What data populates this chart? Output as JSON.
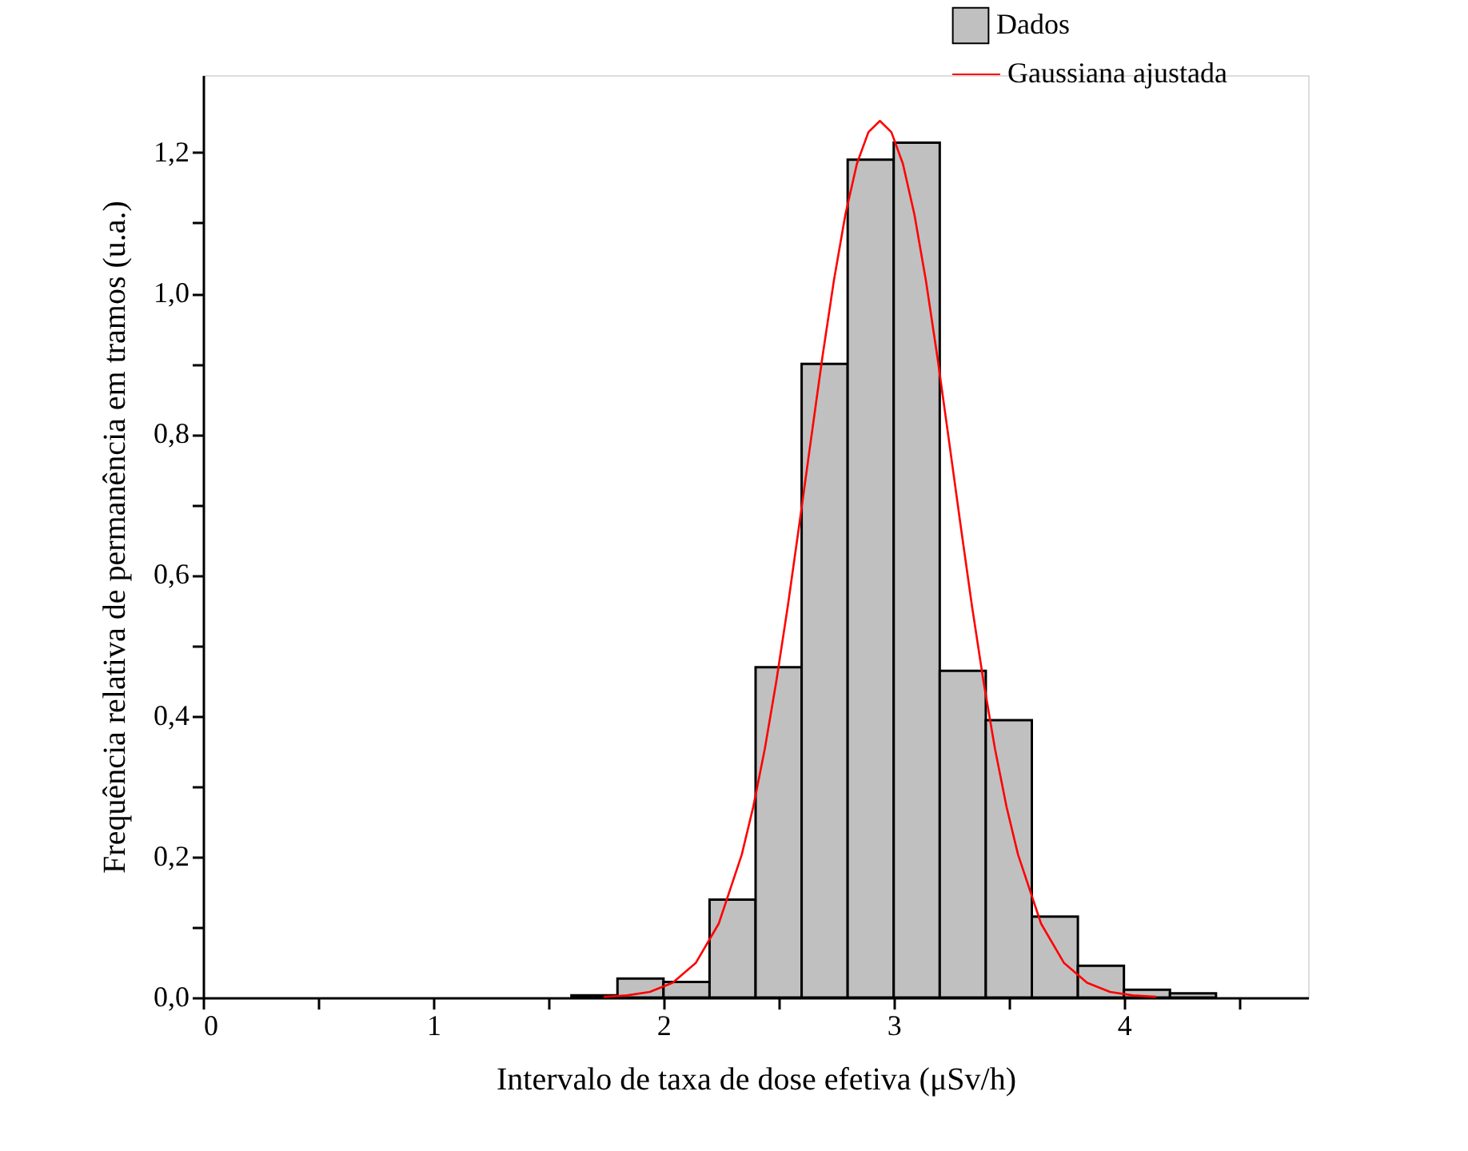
{
  "chart_data": {
    "type": "histogram",
    "xlabel": "Intervalo de taxa de dose efetiva (μSv/h)",
    "ylabel": "Frequência relativa de permanência em tramos (u.a.)",
    "bins": [
      1.6,
      1.8,
      2.0,
      2.2,
      2.4,
      2.6,
      2.8,
      3.0,
      3.2,
      3.4,
      3.6,
      3.8,
      4.0,
      4.2,
      4.4
    ],
    "series": [
      {
        "name": "Dados",
        "color": "#c0c0c0",
        "values": [
          0.003,
          0.027,
          0.022,
          0.139,
          0.469,
          0.9,
          1.19,
          1.214,
          0.464,
          0.394,
          0.115,
          0.045,
          0.011,
          0.006
        ]
      },
      {
        "name": "Gaussiana ajustada",
        "type": "line",
        "color": "#ff0000",
        "x": [
          1.74,
          1.84,
          1.94,
          2.04,
          2.14,
          2.24,
          2.34,
          2.39,
          2.44,
          2.49,
          2.54,
          2.59,
          2.64,
          2.69,
          2.74,
          2.79,
          2.84,
          2.89,
          2.94,
          2.99,
          3.04,
          3.09,
          3.14,
          3.19,
          3.24,
          3.29,
          3.34,
          3.39,
          3.44,
          3.49,
          3.54,
          3.64,
          3.74,
          3.84,
          3.94,
          4.04,
          4.14
        ],
        "values": [
          0.001,
          0.003,
          0.008,
          0.021,
          0.049,
          0.105,
          0.203,
          0.271,
          0.353,
          0.449,
          0.556,
          0.672,
          0.791,
          0.909,
          1.018,
          1.112,
          1.184,
          1.229,
          1.245,
          1.229,
          1.184,
          1.112,
          1.018,
          0.909,
          0.791,
          0.672,
          0.556,
          0.449,
          0.353,
          0.271,
          0.203,
          0.105,
          0.049,
          0.021,
          0.008,
          0.003,
          0.001
        ]
      }
    ],
    "xlim": [
      0,
      4.8
    ],
    "ylim": [
      0,
      1.31
    ],
    "xticks": [
      0,
      {
        "value": 0.5,
        "label": null
      },
      1,
      {
        "value": 1.5,
        "label": null
      },
      2,
      {
        "value": 2.5,
        "label": null
      },
      3,
      {
        "value": 3.5,
        "label": null
      },
      4,
      {
        "value": 4.5,
        "label": null
      }
    ],
    "yticks": [
      {
        "value": 0,
        "label": "0,0"
      },
      {
        "value": 0.1,
        "label": null
      },
      {
        "value": 0.2,
        "label": "0,2"
      },
      {
        "value": 0.3,
        "label": null
      },
      {
        "value": 0.4,
        "label": "0,4"
      },
      {
        "value": 0.5,
        "label": null
      },
      {
        "value": 0.6,
        "label": "0,6"
      },
      {
        "value": 0.7,
        "label": null
      },
      {
        "value": 0.8,
        "label": "0,8"
      },
      {
        "value": 0.9,
        "label": null
      },
      {
        "value": 1.0,
        "label": "1,0"
      },
      {
        "value": 1.1,
        "label": null
      },
      {
        "value": 1.2,
        "label": "1,2"
      }
    ],
    "grid": false,
    "legend": "top right",
    "marker": "none",
    "line_style": "solid"
  }
}
